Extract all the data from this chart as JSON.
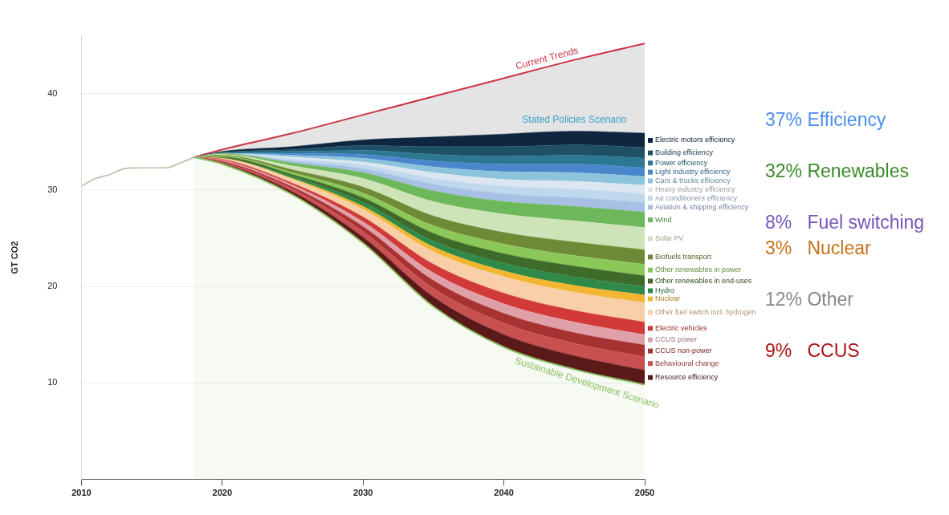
{
  "chart_data": {
    "type": "area",
    "ylabel": "GT CO2",
    "stacked": true,
    "xlim": [
      2010,
      2050
    ],
    "xticks": [
      2010,
      2020,
      2030,
      2040,
      2050
    ],
    "ylim": [
      0,
      46
    ],
    "yticks": [
      10,
      20,
      30,
      40
    ],
    "grid": "y",
    "legend": "right",
    "annotations": [
      "Stated Policies Scenario",
      "37% Efficiency",
      "32% Renewables",
      "8%   Fuel switching",
      "3%   Nuclear",
      "12% Other",
      "9%   CCUS"
    ],
    "series": [
      {
        "type": "line",
        "color": "#c8c8b8",
        "x": [
          2010,
          2011,
          2012,
          2013,
          2014,
          2015,
          2016,
          2017,
          2018
        ],
        "values": [
          30.4,
          31.2,
          31.6,
          32.2,
          32.3,
          32.3,
          32.3,
          32.8,
          33.4
        ]
      },
      {
        "type": "line",
        "name": "Current Trends",
        "color": "#cc3344",
        "x": [
          2018,
          2020,
          2025,
          2030,
          2035,
          2040,
          2045,
          2050
        ],
        "values": [
          33.4,
          34.2,
          35.9,
          37.8,
          39.7,
          41.6,
          43.5,
          45.2
        ]
      },
      {
        "name": "Sustainable Development Scenario",
        "color": "#8cc060",
        "x": [
          2018,
          2020,
          2025,
          2030,
          2035,
          2040,
          2045,
          2050
        ],
        "values": [
          33.4,
          32.7,
          29.5,
          24.5,
          17.9,
          13.7,
          11.4,
          9.8
        ]
      },
      {
        "name": "Resource efficiency",
        "color": "#5a1a1a",
        "x": [
          2018,
          2020,
          2025,
          2030,
          2035,
          2040,
          2045,
          2050
        ],
        "values": [
          0,
          0.1,
          0.3,
          0.6,
          1.0,
          1.3,
          1.4,
          1.5
        ]
      },
      {
        "name": "Behavioural change",
        "color": "#c85050",
        "x": [
          2018,
          2020,
          2025,
          2030,
          2035,
          2040,
          2045,
          2050
        ],
        "values": [
          0,
          0.1,
          0.3,
          0.6,
          0.9,
          1.2,
          1.3,
          1.4
        ]
      },
      {
        "name": "CCUS non-power",
        "color": "#a83232",
        "x": [
          2018,
          2020,
          2025,
          2030,
          2035,
          2040,
          2045,
          2050
        ],
        "values": [
          0,
          0.1,
          0.2,
          0.5,
          0.8,
          1.0,
          1.1,
          1.2
        ]
      },
      {
        "name": "CCUS power",
        "color": "#e0a0a8",
        "x": [
          2018,
          2020,
          2025,
          2030,
          2035,
          2040,
          2045,
          2050
        ],
        "values": [
          0,
          0.1,
          0.2,
          0.5,
          0.8,
          1.0,
          1.1,
          1.1
        ]
      },
      {
        "name": "Electric vehicles",
        "color": "#d23a3a",
        "x": [
          2018,
          2020,
          2025,
          2030,
          2035,
          2040,
          2045,
          2050
        ],
        "values": [
          0,
          0.1,
          0.2,
          0.5,
          0.9,
          1.1,
          1.2,
          1.3
        ]
      },
      {
        "name": "Other fuel switch incl. hydrogen",
        "color": "#f8cfa6",
        "x": [
          2018,
          2020,
          2025,
          2030,
          2035,
          2040,
          2045,
          2050
        ],
        "values": [
          0,
          0.1,
          0.4,
          0.8,
          1.3,
          1.7,
          1.9,
          2.0
        ]
      },
      {
        "name": "Nuclear",
        "color": "#f2b631",
        "x": [
          2018,
          2020,
          2025,
          2030,
          2035,
          2040,
          2045,
          2050
        ],
        "values": [
          0,
          0,
          0.1,
          0.3,
          0.5,
          0.6,
          0.7,
          0.8
        ]
      },
      {
        "name": "Hydro",
        "color": "#2f8a4a",
        "x": [
          2018,
          2020,
          2025,
          2030,
          2035,
          2040,
          2045,
          2050
        ],
        "values": [
          0,
          0,
          0.2,
          0.4,
          0.6,
          0.8,
          0.9,
          0.9
        ]
      },
      {
        "name": "Other renewables in end-uses",
        "color": "#3f6b2a",
        "x": [
          2018,
          2020,
          2025,
          2030,
          2035,
          2040,
          2045,
          2050
        ],
        "values": [
          0,
          0.1,
          0.2,
          0.5,
          0.8,
          1.0,
          1.1,
          1.1
        ]
      },
      {
        "name": "Other renewables in power",
        "color": "#8cc75a",
        "x": [
          2018,
          2020,
          2025,
          2030,
          2035,
          2040,
          2045,
          2050
        ],
        "values": [
          0,
          0.1,
          0.2,
          0.5,
          0.8,
          1.0,
          1.1,
          1.2
        ]
      },
      {
        "name": "Biofuels transport",
        "color": "#6e8a36",
        "x": [
          2018,
          2020,
          2025,
          2030,
          2035,
          2040,
          2045,
          2050
        ],
        "values": [
          0,
          0.1,
          0.3,
          0.6,
          1.0,
          1.2,
          1.4,
          1.5
        ]
      },
      {
        "name": "Solar PV",
        "color": "#cfe3b8",
        "x": [
          2018,
          2020,
          2025,
          2030,
          2035,
          2040,
          2045,
          2050
        ],
        "values": [
          0,
          0.1,
          0.4,
          0.9,
          1.5,
          1.9,
          2.2,
          2.3
        ]
      },
      {
        "name": "Wind",
        "color": "#6db85a",
        "x": [
          2018,
          2020,
          2025,
          2030,
          2035,
          2040,
          2045,
          2050
        ],
        "values": [
          0,
          0.1,
          0.3,
          0.6,
          1.1,
          1.3,
          1.5,
          1.6
        ]
      },
      {
        "name": "Aviation & shipping efficiency",
        "color": "#a7c0e4",
        "x": [
          2018,
          2020,
          2025,
          2030,
          2035,
          2040,
          2045,
          2050
        ],
        "values": [
          0,
          0,
          0.2,
          0.4,
          0.7,
          0.8,
          0.9,
          1.0
        ]
      },
      {
        "name": "Air conditioners efficiency",
        "color": "#c0d8ee",
        "x": [
          2018,
          2020,
          2025,
          2030,
          2035,
          2040,
          2045,
          2050
        ],
        "values": [
          0,
          0,
          0.2,
          0.4,
          0.6,
          0.8,
          0.9,
          0.9
        ]
      },
      {
        "name": "Heavy industry efficiency",
        "color": "#dce6f0",
        "x": [
          2018,
          2020,
          2025,
          2030,
          2035,
          2040,
          2045,
          2050
        ],
        "values": [
          0,
          0,
          0.2,
          0.3,
          0.6,
          0.7,
          0.8,
          0.9
        ]
      },
      {
        "name": "Cars & trucks efficiency",
        "color": "#8cc4dc",
        "x": [
          2018,
          2020,
          2025,
          2030,
          2035,
          2040,
          2045,
          2050
        ],
        "values": [
          0,
          0,
          0.2,
          0.4,
          0.6,
          0.8,
          0.9,
          0.9
        ]
      },
      {
        "name": "Light industry efficiency",
        "color": "#4a86cc",
        "x": [
          2018,
          2020,
          2025,
          2030,
          2035,
          2040,
          2045,
          2050
        ],
        "values": [
          0,
          0,
          0.2,
          0.4,
          0.6,
          0.8,
          0.9,
          0.9
        ]
      },
      {
        "name": "Power efficiency",
        "color": "#2c7890",
        "x": [
          2018,
          2020,
          2025,
          2030,
          2035,
          2040,
          2045,
          2050
        ],
        "values": [
          0,
          0,
          0.2,
          0.4,
          0.7,
          0.8,
          0.9,
          1.0
        ]
      },
      {
        "name": "Building efficiency",
        "color": "#1f5068",
        "x": [
          2018,
          2020,
          2025,
          2030,
          2035,
          2040,
          2045,
          2050
        ],
        "values": [
          0,
          0.1,
          0.2,
          0.5,
          0.8,
          1.0,
          1.1,
          1.1
        ]
      },
      {
        "name": "Electric motors efficiency",
        "color": "#0f2640",
        "x": [
          2018,
          2020,
          2025,
          2030,
          2035,
          2040,
          2045,
          2050
        ],
        "values": [
          0,
          0.1,
          0.3,
          0.6,
          1.0,
          1.3,
          1.4,
          1.5
        ]
      }
    ]
  }
}
